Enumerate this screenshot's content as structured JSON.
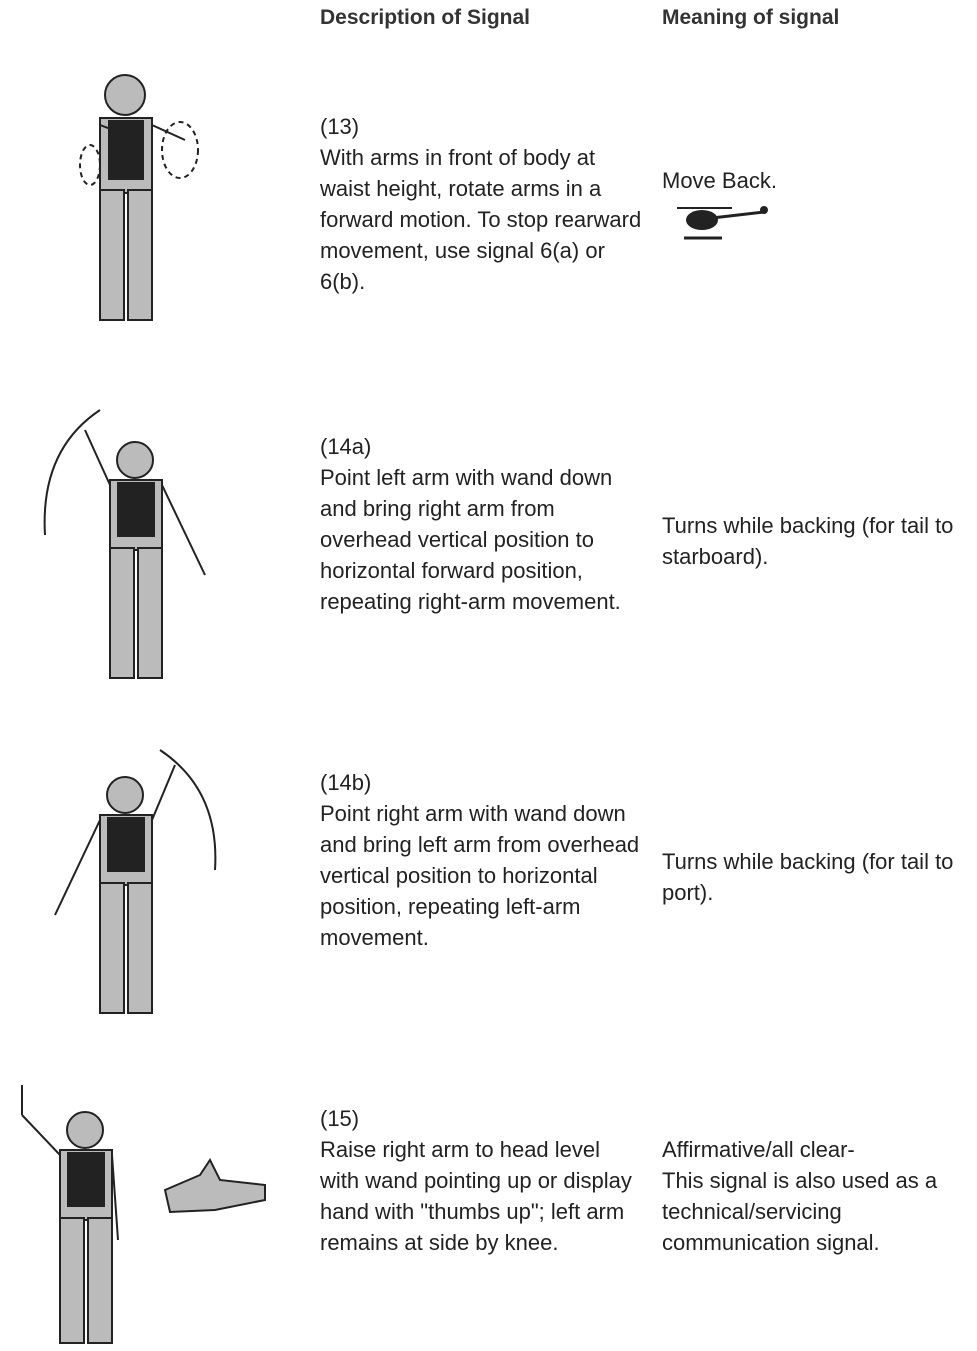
{
  "header": {
    "description": "Description of Signal",
    "meaning": "Meaning of signal"
  },
  "rows": [
    {
      "number": "(13)",
      "description": "With arms in front of body at waist height, rotate arms in a forward motion.  To stop rearward movement, use signal 6(a) or 6(b).",
      "meaning": [
        "Move Back."
      ]
    },
    {
      "number": "(14a)",
      "description": "Point left arm with wand down and bring right arm from overhead vertical position to horizontal forward position, repeating right-arm movement.",
      "meaning": [
        "Turns while backing (for tail to starboard)."
      ]
    },
    {
      "number": "(14b)",
      "description": "Point right arm with wand down and bring left arm from overhead vertical position to horizontal position, repeating left-arm movement.",
      "meaning": [
        "Turns while backing (for tail to port)."
      ]
    },
    {
      "number": "(15)",
      "description": "Raise right arm to head level with wand pointing up or display hand with \"thumbs up\"; left arm remains at side by knee.",
      "meaning": [
        "Affirmative/all clear-",
        "This signal is also used as a technical/servicing communication signal."
      ]
    }
  ]
}
